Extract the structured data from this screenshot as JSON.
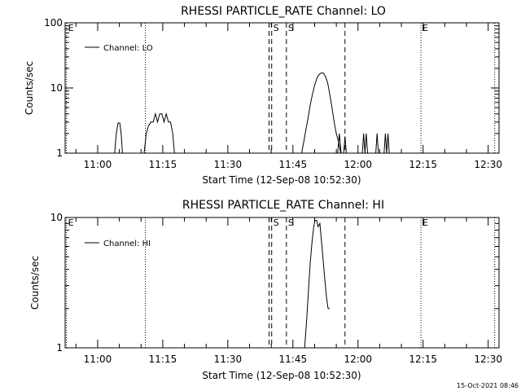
{
  "timestamp": "15-Oct-2021 08:46",
  "chart_data": [
    {
      "type": "line",
      "title": "RHESSI PARTICLE_RATE Channel: LO",
      "xlabel": "Start Time (12-Sep-08 10:52:30)",
      "ylabel": "Counts/sec",
      "x_unit": "minutes after 10:52:30",
      "xlim": [
        0,
        100
      ],
      "ylim": [
        1,
        100
      ],
      "yscale": "log",
      "y_ticks": [
        {
          "value": 1,
          "label": "1"
        },
        {
          "value": 10,
          "label": "10"
        },
        {
          "value": 100,
          "label": "100"
        }
      ],
      "x_ticks": [
        {
          "value": 7.5,
          "label": "11:00"
        },
        {
          "value": 22.5,
          "label": "11:15"
        },
        {
          "value": 37.5,
          "label": "11:30"
        },
        {
          "value": 52.5,
          "label": "11:45"
        },
        {
          "value": 67.5,
          "label": "12:00"
        },
        {
          "value": 82.5,
          "label": "12:15"
        },
        {
          "value": 97.5,
          "label": "12:30"
        }
      ],
      "legend": {
        "label": "Channel: LO",
        "position": "top-left"
      },
      "markers": [
        {
          "x": 0.3,
          "style": "dotted",
          "label": "E"
        },
        {
          "x": 18.5,
          "style": "dotted",
          "label": ""
        },
        {
          "x": 47.0,
          "style": "dashed",
          "label": ""
        },
        {
          "x": 47.6,
          "style": "dashed",
          "label": "S"
        },
        {
          "x": 51.0,
          "style": "dashed",
          "label": "S"
        },
        {
          "x": 64.5,
          "style": "dashed",
          "label": ""
        },
        {
          "x": 82.0,
          "style": "dotted",
          "label": "E"
        },
        {
          "x": 99.0,
          "style": "dotted",
          "label": ""
        }
      ],
      "series": [
        {
          "name": "Channel: LO",
          "segments": [
            [
              [
                11.4,
                1.0
              ],
              [
                11.8,
                2.0
              ],
              [
                12.2,
                2.9
              ],
              [
                12.6,
                2.9
              ],
              [
                12.9,
                2.0
              ],
              [
                13.2,
                1.0
              ]
            ],
            [
              [
                18.2,
                1.0
              ],
              [
                18.7,
                2.0
              ],
              [
                19.2,
                2.6
              ],
              [
                19.8,
                3.0
              ],
              [
                20.3,
                3.0
              ],
              [
                20.8,
                4.0
              ],
              [
                21.3,
                3.0
              ],
              [
                21.8,
                4.0
              ],
              [
                22.3,
                4.0
              ],
              [
                22.8,
                3.0
              ],
              [
                23.3,
                4.0
              ],
              [
                23.8,
                3.0
              ],
              [
                24.3,
                3.0
              ],
              [
                24.8,
                2.0
              ],
              [
                25.2,
                1.0
              ]
            ],
            [
              [
                54.5,
                1.0
              ],
              [
                55.0,
                1.5
              ],
              [
                55.5,
                2.3
              ],
              [
                56.0,
                3.5
              ],
              [
                56.5,
                5.5
              ],
              [
                57.0,
                8.0
              ],
              [
                57.5,
                11.0
              ],
              [
                58.0,
                14.0
              ],
              [
                58.5,
                16.0
              ],
              [
                59.0,
                17.0
              ],
              [
                59.5,
                17.0
              ],
              [
                60.0,
                15.0
              ],
              [
                60.5,
                12.0
              ],
              [
                61.0,
                8.0
              ],
              [
                61.5,
                5.0
              ],
              [
                62.0,
                3.0
              ],
              [
                62.5,
                2.0
              ],
              [
                63.0,
                1.5
              ],
              [
                63.5,
                1.0
              ]
            ],
            [
              [
                62.8,
                1.0
              ],
              [
                63.2,
                2.0
              ],
              [
                63.6,
                1.0
              ]
            ],
            [
              [
                64.2,
                1.0
              ],
              [
                64.5,
                1.8
              ],
              [
                64.8,
                1.0
              ]
            ],
            [
              [
                68.5,
                1.0
              ],
              [
                68.8,
                2.0
              ],
              [
                69.1,
                1.0
              ],
              [
                69.4,
                2.0
              ],
              [
                69.7,
                1.0
              ]
            ],
            [
              [
                71.6,
                1.0
              ],
              [
                71.9,
                2.0
              ],
              [
                72.2,
                1.0
              ]
            ],
            [
              [
                73.5,
                1.0
              ],
              [
                73.8,
                2.0
              ],
              [
                74.1,
                1.0
              ],
              [
                74.4,
                2.0
              ],
              [
                74.7,
                1.0
              ]
            ]
          ]
        }
      ]
    },
    {
      "type": "line",
      "title": "RHESSI PARTICLE_RATE Channel: HI",
      "xlabel": "Start Time (12-Sep-08 10:52:30)",
      "ylabel": "Counts/sec",
      "x_unit": "minutes after 10:52:30",
      "xlim": [
        0,
        100
      ],
      "ylim": [
        1,
        10
      ],
      "yscale": "log",
      "y_ticks": [
        {
          "value": 1,
          "label": "1"
        },
        {
          "value": 10,
          "label": "10"
        }
      ],
      "x_ticks": [
        {
          "value": 7.5,
          "label": "11:00"
        },
        {
          "value": 22.5,
          "label": "11:15"
        },
        {
          "value": 37.5,
          "label": "11:30"
        },
        {
          "value": 52.5,
          "label": "11:45"
        },
        {
          "value": 67.5,
          "label": "12:00"
        },
        {
          "value": 82.5,
          "label": "12:15"
        },
        {
          "value": 97.5,
          "label": "12:30"
        }
      ],
      "legend": {
        "label": "Channel: HI",
        "position": "top-left"
      },
      "markers": [
        {
          "x": 0.3,
          "style": "dotted",
          "label": "E"
        },
        {
          "x": 18.5,
          "style": "dotted",
          "label": ""
        },
        {
          "x": 47.0,
          "style": "dashed",
          "label": ""
        },
        {
          "x": 47.6,
          "style": "dashed",
          "label": "S"
        },
        {
          "x": 51.0,
          "style": "dashed",
          "label": "S"
        },
        {
          "x": 64.5,
          "style": "dashed",
          "label": ""
        },
        {
          "x": 82.0,
          "style": "dotted",
          "label": "E"
        },
        {
          "x": 99.0,
          "style": "dotted",
          "label": ""
        }
      ],
      "series": [
        {
          "name": "Channel: HI",
          "segments": [
            [
              [
                55.2,
                1.0
              ],
              [
                55.6,
                1.5
              ],
              [
                56.0,
                2.5
              ],
              [
                56.5,
                4.5
              ],
              [
                56.9,
                6.5
              ],
              [
                57.3,
                8.5
              ],
              [
                57.6,
                9.5
              ],
              [
                58.0,
                9.5
              ],
              [
                58.3,
                8.5
              ],
              [
                58.7,
                9.0
              ],
              [
                59.0,
                7.0
              ],
              [
                59.4,
                5.0
              ],
              [
                59.8,
                3.5
              ],
              [
                60.2,
                2.5
              ],
              [
                60.6,
                2.0
              ],
              [
                61.0,
                2.0
              ]
            ]
          ]
        }
      ]
    }
  ]
}
